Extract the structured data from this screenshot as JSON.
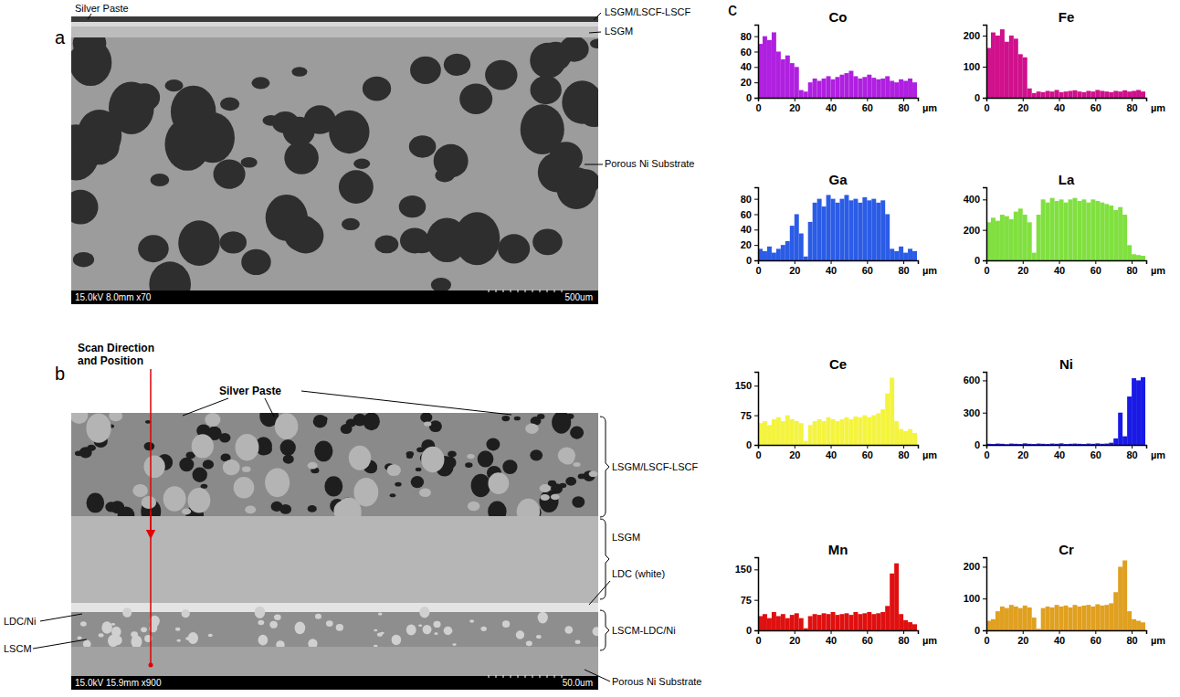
{
  "panel_a": {
    "letter": "a",
    "labels": [
      "Silver Paste",
      "LSGM/LSCF-LSCF",
      "LSGM",
      "Porous Ni Substrate"
    ],
    "info": "15.0kV 8.0mm x70",
    "scale_bar": "500um"
  },
  "panel_b": {
    "letter": "b",
    "labels": [
      "Scan Direction and Position",
      "Silver Paste",
      "LSGM/LSCF-LSCF",
      "LSGM",
      "LDC (white)",
      "LSCM-LDC/Ni",
      "LDC/Ni",
      "LSCM",
      "Porous Ni Substrate"
    ],
    "info": "15.0kV 15.9mm x900",
    "scale_bar": "50.0um"
  },
  "panel_c": {
    "letter": "c"
  },
  "chart_data": [
    {
      "type": "bar",
      "title": "Co",
      "color": "#b020e0",
      "x_label": "µm",
      "x": [
        0,
        2.5,
        5,
        7.5,
        10,
        12.5,
        15,
        17.5,
        20,
        22.5,
        25,
        27.5,
        30,
        32.5,
        35,
        37.5,
        40,
        42.5,
        45,
        47.5,
        50,
        52.5,
        55,
        57.5,
        60,
        62.5,
        65,
        67.5,
        70,
        72.5,
        75,
        77.5,
        80,
        82.5,
        85
      ],
      "values": [
        70,
        80,
        75,
        85,
        60,
        50,
        55,
        45,
        40,
        10,
        8,
        20,
        25,
        22,
        25,
        28,
        24,
        27,
        30,
        32,
        35,
        28,
        25,
        27,
        30,
        26,
        24,
        25,
        28,
        22,
        20,
        24,
        22,
        25,
        20
      ],
      "xlim": [
        0,
        88
      ],
      "xticks": [
        0,
        20,
        40,
        60,
        80
      ],
      "ylim": [
        0,
        95
      ],
      "yticks": [
        0,
        20,
        40,
        60,
        80
      ]
    },
    {
      "type": "bar",
      "title": "Fe",
      "color": "#d0108c",
      "x_label": "µm",
      "x": [
        0,
        2.5,
        5,
        7.5,
        10,
        12.5,
        15,
        17.5,
        20,
        22.5,
        25,
        27.5,
        30,
        32.5,
        35,
        37.5,
        40,
        42.5,
        45,
        47.5,
        50,
        52.5,
        55,
        57.5,
        60,
        62.5,
        65,
        67.5,
        70,
        72.5,
        75,
        77.5,
        80,
        82.5,
        85
      ],
      "values": [
        160,
        210,
        200,
        220,
        180,
        200,
        190,
        140,
        130,
        30,
        15,
        20,
        18,
        22,
        20,
        25,
        18,
        20,
        22,
        24,
        20,
        18,
        22,
        20,
        25,
        22,
        20,
        18,
        22,
        20,
        24,
        20,
        22,
        25,
        20
      ],
      "xlim": [
        0,
        88
      ],
      "xticks": [
        0,
        20,
        40,
        60,
        80
      ],
      "ylim": [
        0,
        235
      ],
      "yticks": [
        0,
        100,
        200
      ]
    },
    {
      "type": "bar",
      "title": "Ga",
      "color": "#2b5ce6",
      "x_label": "µm",
      "x": [
        0,
        2.5,
        5,
        7.5,
        10,
        12.5,
        15,
        17.5,
        20,
        22.5,
        25,
        27.5,
        30,
        32.5,
        35,
        37.5,
        40,
        42.5,
        45,
        47.5,
        50,
        52.5,
        55,
        57.5,
        60,
        62.5,
        65,
        67.5,
        70,
        72.5,
        75,
        77.5,
        80,
        82.5,
        85
      ],
      "values": [
        15,
        12,
        18,
        10,
        15,
        20,
        25,
        45,
        60,
        35,
        5,
        50,
        75,
        80,
        70,
        85,
        80,
        75,
        80,
        85,
        78,
        80,
        75,
        82,
        78,
        80,
        75,
        78,
        60,
        15,
        12,
        18,
        10,
        15,
        12
      ],
      "xlim": [
        0,
        88
      ],
      "xticks": [
        0,
        20,
        40,
        60,
        80
      ],
      "ylim": [
        0,
        95
      ],
      "yticks": [
        0,
        20,
        40,
        60,
        80
      ]
    },
    {
      "type": "bar",
      "title": "La",
      "color": "#80e040",
      "x_label": "µm",
      "x": [
        0,
        2.5,
        5,
        7.5,
        10,
        12.5,
        15,
        17.5,
        20,
        22.5,
        25,
        27.5,
        30,
        32.5,
        35,
        37.5,
        40,
        42.5,
        45,
        47.5,
        50,
        52.5,
        55,
        57.5,
        60,
        62.5,
        65,
        67.5,
        70,
        72.5,
        75,
        77.5,
        80,
        82.5,
        85
      ],
      "values": [
        250,
        280,
        260,
        300,
        290,
        270,
        320,
        340,
        300,
        250,
        50,
        300,
        400,
        380,
        410,
        390,
        400,
        380,
        400,
        410,
        390,
        400,
        380,
        400,
        390,
        380,
        370,
        360,
        330,
        350,
        300,
        100,
        40,
        35,
        30
      ],
      "xlim": [
        0,
        88
      ],
      "xticks": [
        0,
        20,
        40,
        60,
        80
      ],
      "ylim": [
        0,
        480
      ],
      "yticks": [
        0,
        200,
        400
      ]
    },
    {
      "type": "bar",
      "title": "Ce",
      "color": "#f4f440",
      "x_label": "µm",
      "x": [
        0,
        2.5,
        5,
        7.5,
        10,
        12.5,
        15,
        17.5,
        20,
        22.5,
        25,
        27.5,
        30,
        32.5,
        35,
        37.5,
        40,
        42.5,
        45,
        47.5,
        50,
        52.5,
        55,
        57.5,
        60,
        62.5,
        65,
        67.5,
        70,
        72.5,
        75,
        77.5,
        80,
        82.5,
        85
      ],
      "values": [
        55,
        60,
        50,
        65,
        70,
        60,
        75,
        65,
        60,
        55,
        10,
        50,
        60,
        65,
        60,
        70,
        65,
        60,
        65,
        70,
        65,
        72,
        70,
        75,
        70,
        75,
        80,
        90,
        130,
        170,
        60,
        40,
        35,
        40,
        30
      ],
      "xlim": [
        0,
        88
      ],
      "xticks": [
        0,
        20,
        40,
        60,
        80
      ],
      "ylim": [
        0,
        185
      ],
      "yticks": [
        0,
        75,
        150
      ]
    },
    {
      "type": "bar",
      "title": "Ni",
      "color": "#1a1ae6",
      "x_label": "µm",
      "x": [
        0,
        2.5,
        5,
        7.5,
        10,
        12.5,
        15,
        17.5,
        20,
        22.5,
        25,
        27.5,
        30,
        32.5,
        35,
        37.5,
        40,
        42.5,
        45,
        47.5,
        50,
        52.5,
        55,
        57.5,
        60,
        62.5,
        65,
        67.5,
        70,
        72.5,
        75,
        77.5,
        80,
        82.5,
        85
      ],
      "values": [
        10,
        8,
        12,
        10,
        6,
        12,
        10,
        8,
        14,
        10,
        8,
        12,
        10,
        8,
        12,
        10,
        14,
        8,
        10,
        12,
        10,
        8,
        12,
        10,
        14,
        10,
        12,
        20,
        60,
        300,
        80,
        450,
        620,
        600,
        630
      ],
      "xlim": [
        0,
        88
      ],
      "xticks": [
        0,
        20,
        40,
        60,
        80
      ],
      "ylim": [
        0,
        680
      ],
      "yticks": [
        0,
        300,
        600
      ]
    },
    {
      "type": "bar",
      "title": "Mn",
      "color": "#e01010",
      "x_label": "µm",
      "x": [
        0,
        2.5,
        5,
        7.5,
        10,
        12.5,
        15,
        17.5,
        20,
        22.5,
        25,
        27.5,
        30,
        32.5,
        35,
        37.5,
        40,
        42.5,
        45,
        47.5,
        50,
        52.5,
        55,
        57.5,
        60,
        62.5,
        65,
        67.5,
        70,
        72.5,
        75,
        77.5,
        80,
        82.5,
        85
      ],
      "values": [
        35,
        40,
        30,
        45,
        35,
        40,
        30,
        38,
        42,
        30,
        5,
        35,
        40,
        38,
        42,
        40,
        45,
        38,
        40,
        42,
        38,
        45,
        40,
        42,
        45,
        40,
        42,
        45,
        60,
        140,
        165,
        40,
        25,
        20,
        15
      ],
      "xlim": [
        0,
        88
      ],
      "xticks": [
        0,
        20,
        40,
        60,
        80
      ],
      "ylim": [
        0,
        180
      ],
      "yticks": [
        0,
        75,
        150
      ]
    },
    {
      "type": "bar",
      "title": "Cr",
      "color": "#e0a020",
      "x_label": "µm",
      "x": [
        0,
        2.5,
        5,
        7.5,
        10,
        12.5,
        15,
        17.5,
        20,
        22.5,
        25,
        27.5,
        30,
        32.5,
        35,
        37.5,
        40,
        42.5,
        45,
        47.5,
        50,
        52.5,
        55,
        57.5,
        60,
        62.5,
        65,
        67.5,
        70,
        72.5,
        75,
        77.5,
        80,
        82.5,
        85
      ],
      "values": [
        30,
        35,
        60,
        75,
        70,
        80,
        75,
        70,
        78,
        72,
        40,
        5,
        70,
        75,
        72,
        80,
        75,
        78,
        72,
        80,
        75,
        78,
        80,
        75,
        82,
        78,
        80,
        85,
        120,
        200,
        220,
        60,
        35,
        30,
        25
      ],
      "xlim": [
        0,
        88
      ],
      "xticks": [
        0,
        20,
        40,
        60,
        80
      ],
      "ylim": [
        0,
        230
      ],
      "yticks": [
        0,
        100,
        200
      ]
    }
  ]
}
